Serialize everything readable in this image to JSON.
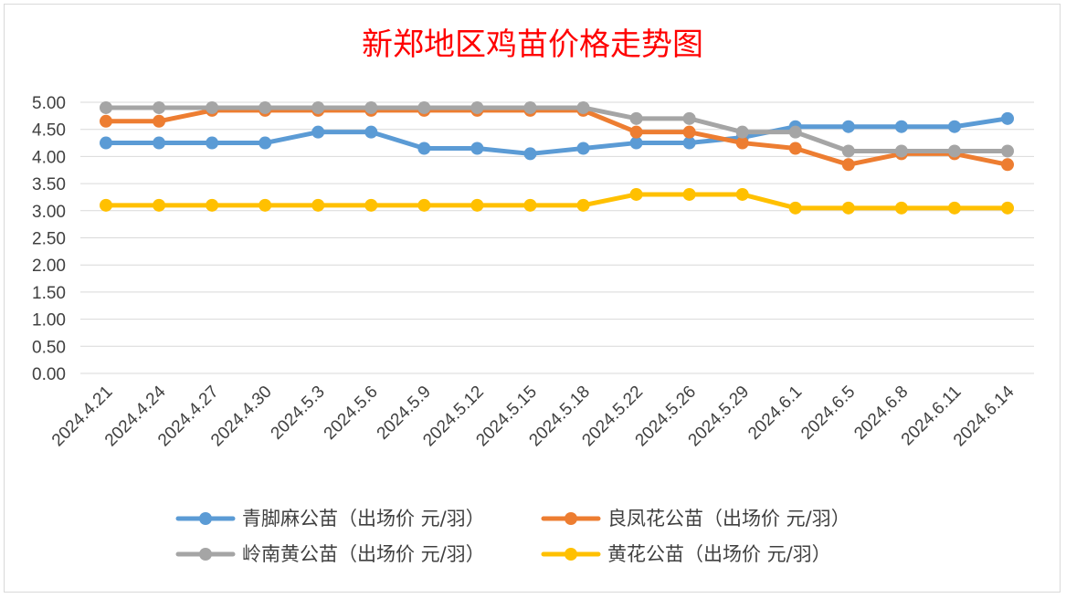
{
  "chart_data": {
    "type": "line",
    "title": "新郑地区鸡苗价格走势图",
    "xlabel": "",
    "ylabel": "",
    "ylim": [
      0,
      5
    ],
    "y_ticks": [
      "0.00",
      "0.50",
      "1.00",
      "1.50",
      "2.00",
      "2.50",
      "3.00",
      "3.50",
      "4.00",
      "4.50",
      "5.00"
    ],
    "grid": true,
    "legend_position": "bottom",
    "categories": [
      "2024.4.21",
      "2024.4.24",
      "2024.4.27",
      "2024.4.30",
      "2024.5.3",
      "2024.5.6",
      "2024.5.9",
      "2024.5.12",
      "2024.5.15",
      "2024.5.18",
      "2024.5.22",
      "2024.5.26",
      "2024.5.29",
      "2024.6.1",
      "2024.6.5",
      "2024.6.8",
      "2024.6.11",
      "2024.6.14"
    ],
    "series": [
      {
        "name": "青脚麻公苗（出场价 元/羽）",
        "color": "#5b9bd5",
        "values": [
          4.25,
          4.25,
          4.25,
          4.25,
          4.45,
          4.45,
          4.15,
          4.15,
          4.05,
          4.15,
          4.25,
          4.25,
          4.35,
          4.55,
          4.55,
          4.55,
          4.55,
          4.7
        ]
      },
      {
        "name": "良凤花公苗（出场价 元/羽）",
        "color": "#ed7d31",
        "values": [
          4.65,
          4.65,
          4.85,
          4.85,
          4.85,
          4.85,
          4.85,
          4.85,
          4.85,
          4.85,
          4.45,
          4.45,
          4.25,
          4.15,
          3.85,
          4.05,
          4.05,
          3.85
        ]
      },
      {
        "name": "岭南黄公苗（出场价 元/羽）",
        "color": "#a5a5a5",
        "values": [
          4.9,
          4.9,
          4.9,
          4.9,
          4.9,
          4.9,
          4.9,
          4.9,
          4.9,
          4.9,
          4.7,
          4.7,
          4.45,
          4.45,
          4.1,
          4.1,
          4.1,
          4.1
        ]
      },
      {
        "name": "黄花公苗（出场价 元/羽）",
        "color": "#ffc000",
        "values": [
          3.1,
          3.1,
          3.1,
          3.1,
          3.1,
          3.1,
          3.1,
          3.1,
          3.1,
          3.1,
          3.3,
          3.3,
          3.3,
          3.05,
          3.05,
          3.05,
          3.05,
          3.05
        ]
      }
    ]
  }
}
